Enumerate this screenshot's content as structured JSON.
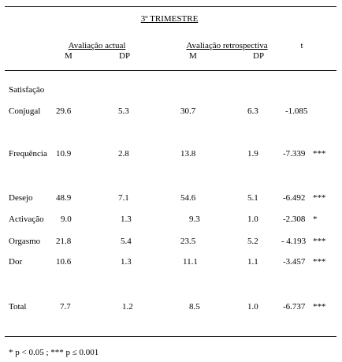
{
  "title": "3º TRIMESTRE",
  "groups": {
    "actual": "Avaliação actual",
    "retro": "Avaliação retrospectiva",
    "t": "t"
  },
  "subheaders": {
    "actual_m": "M",
    "actual_dp": "DP",
    "retro_m": "M",
    "retro_dp": "DP"
  },
  "section_label": "Satisfação",
  "rows": [
    {
      "label": "Conjugal",
      "am": "29.6",
      "adp": "5.3",
      "rm": "30.7",
      "rdp": "6.3",
      "t": "-1.085",
      "sig": ""
    },
    {
      "label": "Frequência",
      "am": "10.9",
      "adp": "2.8",
      "rm": "13.8",
      "rdp": "1.9",
      "t": "-7.339",
      "sig": "***"
    },
    {
      "label": "Desejo",
      "am": "48.9",
      "adp": "7.1",
      "rm": "54.6",
      "rdp": "5.1",
      "t": "-6.492",
      "sig": "***"
    },
    {
      "label": "Activação",
      "am": "9.0",
      "adp": "1.3",
      "rm": "9.3",
      "rdp": "1.0",
      "t": "-2.308",
      "sig": "*"
    },
    {
      "label": "Orgasmo",
      "am": "21.8",
      "adp": "5.4",
      "rm": "23.5",
      "rdp": "5.2",
      "t": "- 4.193",
      "sig": "***"
    },
    {
      "label": "Dor",
      "am": "10.6",
      "adp": "1.3",
      "rm": "11.1",
      "rdp": "1.1",
      "t": "-3.457",
      "sig": "***"
    },
    {
      "label": "Total",
      "am": "7.7",
      "adp": "1.2",
      "rm": "8.5",
      "rdp": "1.0",
      "t": "-6.737",
      "sig": "***"
    }
  ],
  "footnote": "* p < 0.05 ; *** p ≤ 0.001"
}
